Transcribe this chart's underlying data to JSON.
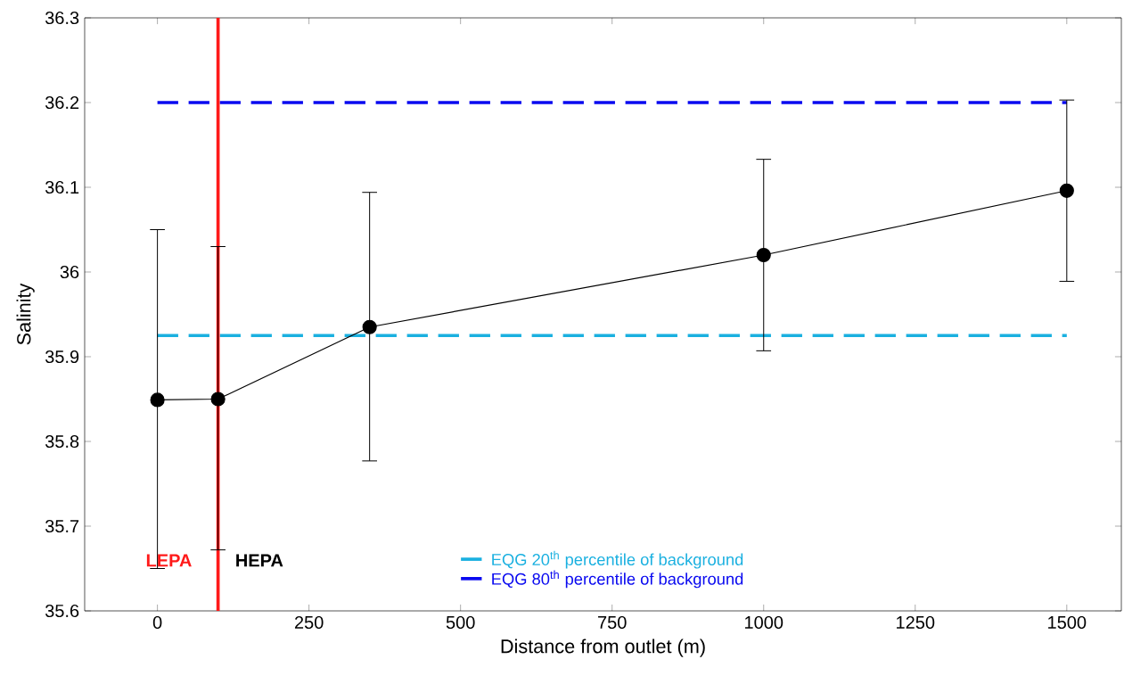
{
  "chart_data": {
    "type": "line",
    "xlabel": "Distance from outlet (m)",
    "ylabel": "Salinity",
    "x": [
      0,
      100,
      350,
      1000,
      1500
    ],
    "series": [
      {
        "color": "#000000",
        "values": [
          35.849,
          35.85,
          35.935,
          36.02,
          36.096
        ],
        "errors": [
          [
            35.65,
            36.05
          ],
          [
            35.672,
            36.03
          ],
          [
            35.777,
            36.094
          ],
          [
            35.907,
            36.133
          ],
          [
            35.989,
            36.203
          ]
        ]
      }
    ],
    "marker": "circle",
    "line_style": "solid",
    "xlim": [
      -120,
      1590
    ],
    "ylim": [
      35.6,
      36.3
    ],
    "xticks": [
      0,
      250,
      500,
      750,
      1000,
      1250,
      1500
    ],
    "yticks": [
      35.6,
      35.7,
      35.8,
      35.9,
      36,
      36.1,
      36.2,
      36.3
    ],
    "ref_lines": [
      {
        "axis": "y",
        "value": 35.925,
        "label": "EQG 20$^{th}$ percentile of background",
        "color": "#1ab0e0",
        "line_style": "dashed"
      },
      {
        "axis": "y",
        "value": 36.2,
        "label": "EQG 80$^{th}$ percentile of background",
        "color": "#0a0af0",
        "line_style": "dashed"
      },
      {
        "axis": "x",
        "value": 100,
        "color": "#ff1a1a",
        "line_style": "solid"
      }
    ],
    "annotations": [
      "LEPA",
      "HEPA"
    ],
    "legend": "bottom",
    "grid": false
  }
}
